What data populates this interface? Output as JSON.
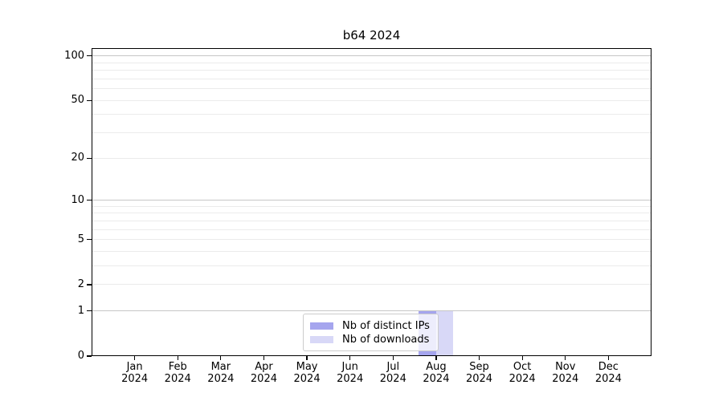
{
  "window": {
    "background": "#ffffff"
  },
  "chart_data": {
    "type": "bar",
    "title": "b64 2024",
    "categories": [
      "Jan",
      "Feb",
      "Mar",
      "Apr",
      "May",
      "Jun",
      "Jul",
      "Aug",
      "Sep",
      "Oct",
      "Nov",
      "Dec"
    ],
    "category_year": "2024",
    "series": [
      {
        "name": "Nb of distinct IPs",
        "color": "#a5a5ee",
        "values": [
          0,
          0,
          0,
          0,
          0,
          0,
          0,
          1,
          0,
          0,
          0,
          0
        ]
      },
      {
        "name": "Nb of downloads",
        "color": "#d8d8f7",
        "values": [
          0,
          0,
          0,
          0,
          0,
          0,
          0,
          1,
          0,
          0,
          0,
          0
        ]
      }
    ],
    "yscale": "log1p",
    "ylim": [
      0,
      113
    ],
    "y_tick_values": [
      0,
      1,
      2,
      5,
      10,
      20,
      50,
      100
    ],
    "y_tick_labels": [
      "0",
      "1",
      "2",
      "5",
      "10",
      "20",
      "50",
      "100"
    ],
    "y_emphasized_gridlines": [
      1,
      10,
      100
    ],
    "y_minor_gridlines": [
      3,
      4,
      6,
      7,
      8,
      9,
      30,
      40,
      60,
      70,
      80,
      90
    ],
    "grid": true,
    "legend_position": "lower center",
    "colors": {
      "emphasized_grid": "#c6c6c6",
      "light_grid": "#ebebeb",
      "spine": "#000000",
      "text": "#000000",
      "legend_border": "#cccccc",
      "legend_background": "rgba(255,255,255,0.8)"
    }
  }
}
